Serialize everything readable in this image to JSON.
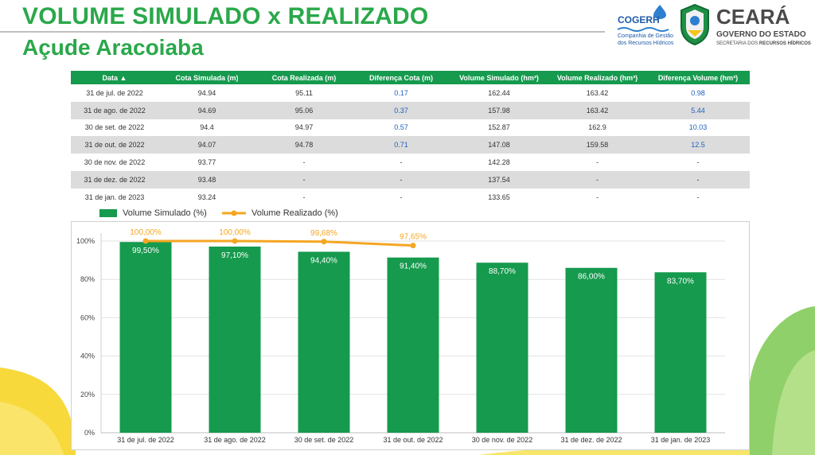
{
  "header": {
    "title": "VOLUME SIMULADO x REALIZADO",
    "subtitle": "Açude Aracoiaba"
  },
  "logos": {
    "cogerh": "COGERH",
    "cogerh_line1": "Companhia de Gestão",
    "cogerh_line2": "dos Recursos Hídricos",
    "ceara": "CEARÁ",
    "governo": "GOVERNO DO ESTADO",
    "secretaria_prefix": "SECRETARIA DOS ",
    "secretaria_bold": "RECURSOS HÍDRICOS"
  },
  "table": {
    "columns": [
      "Data ▲",
      "Cota Simulada (m)",
      "Cota Realizada (m)",
      "Diferença Cota (m)",
      "Volume Simulado (hm³)",
      "Volume Realizado (hm³)",
      "Diferença Volume (hm³)"
    ],
    "rows": [
      [
        "31 de jul. de 2022",
        "94.94",
        "95.11",
        "0.17",
        "162.44",
        "163.42",
        "0.98"
      ],
      [
        "31 de ago. de 2022",
        "94.69",
        "95.06",
        "0.37",
        "157.98",
        "163.42",
        "5.44"
      ],
      [
        "30 de set. de 2022",
        "94.4",
        "94.97",
        "0.57",
        "152.87",
        "162.9",
        "10.03"
      ],
      [
        "31 de out. de 2022",
        "94.07",
        "94.78",
        "0.71",
        "147.08",
        "159.58",
        "12.5"
      ],
      [
        "30 de nov. de 2022",
        "93.77",
        "-",
        "-",
        "142.28",
        "-",
        "-"
      ],
      [
        "31 de dez. de 2022",
        "93.48",
        "-",
        "-",
        "137.54",
        "-",
        "-"
      ],
      [
        "31 de jan. de 2023",
        "93.24",
        "-",
        "-",
        "133.65",
        "-",
        "-"
      ]
    ]
  },
  "colors": {
    "bar": "#169a4e",
    "line": "#f5a623",
    "accent_green": "#2aa84a",
    "header_green": "#169a4e",
    "blue_text": "#1f5fbf"
  },
  "chart_data": {
    "type": "bar",
    "categories": [
      "31 de jul. de 2022",
      "31 de ago. de 2022",
      "30 de set. de 2022",
      "31 de out. de 2022",
      "30 de nov. de 2022",
      "31 de dez. de 2022",
      "31 de jan. de 2023"
    ],
    "series": [
      {
        "name": "Volume Simulado (%)",
        "type": "bar",
        "values": [
          99.5,
          97.1,
          94.4,
          91.4,
          88.7,
          86.0,
          83.7
        ],
        "labels": [
          "99,50%",
          "97,10%",
          "94,40%",
          "91,40%",
          "88,70%",
          "86,00%",
          "83,70%"
        ]
      },
      {
        "name": "Volume Realizado (%)",
        "type": "line",
        "values": [
          100.0,
          100.0,
          99.68,
          97.65,
          null,
          null,
          null
        ],
        "labels": [
          "100,00%",
          "100,00%",
          "99,68%",
          "97,65%",
          "",
          "",
          ""
        ]
      }
    ],
    "yticks": [
      "0%",
      "20%",
      "40%",
      "60%",
      "80%",
      "100%"
    ],
    "ylim": [
      0,
      100
    ],
    "grid": true,
    "legend": "top-left"
  }
}
